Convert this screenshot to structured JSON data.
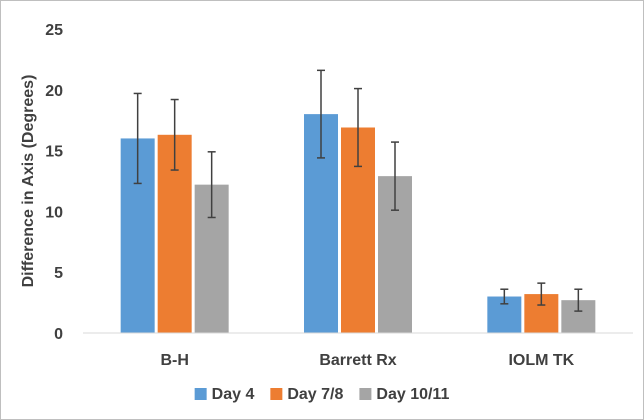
{
  "chart_data": {
    "type": "bar",
    "title": "",
    "xlabel": "",
    "ylabel": "Difference in Axis (Degrees)",
    "ylim": [
      0,
      25
    ],
    "yticks": [
      0,
      5,
      10,
      15,
      20,
      25
    ],
    "grid": false,
    "legend_position": "bottom",
    "categories": [
      "B-H",
      "Barrett Rx",
      "IOLM TK"
    ],
    "series": [
      {
        "name": "Day 4",
        "color": "#5b9bd5",
        "values": [
          16.0,
          18.0,
          3.0
        ],
        "error": [
          3.7,
          3.6,
          0.6
        ]
      },
      {
        "name": "Day 7/8",
        "color": "#ed7d31",
        "values": [
          16.3,
          16.9,
          3.2
        ],
        "error": [
          2.9,
          3.2,
          0.9
        ]
      },
      {
        "name": "Day 10/11",
        "color": "#a5a5a5",
        "values": [
          12.2,
          12.9,
          2.7
        ],
        "error": [
          2.7,
          2.8,
          0.9
        ]
      }
    ],
    "error_bar_color": "#404040"
  }
}
